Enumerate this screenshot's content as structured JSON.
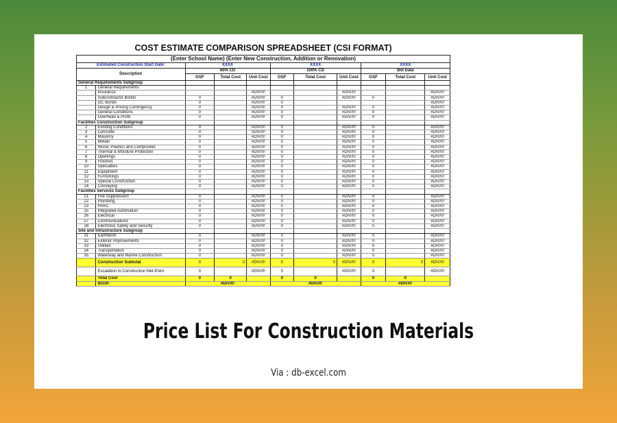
{
  "sheet": {
    "title": "COST ESTIMATE COMPARISON SPREADSHEET (CSI FORMAT)",
    "subtitle": "(Enter School Name) (Enter New Construction, Addition or Renovation)",
    "start_date_label": "Estimated Construction Start Date:",
    "placeholders": [
      "XXXX",
      "XXXX",
      "XXXX"
    ],
    "phases": [
      "60% CD",
      "100% CD",
      "Bid Data"
    ],
    "description_header": "Description",
    "col_headers": [
      "GSF",
      "Total Cost",
      "Unit Cost"
    ],
    "rows": [
      {
        "type": "group",
        "desc": "General Requirements Subgroup"
      },
      {
        "num": "1",
        "desc": "General Requirements",
        "v": [
          "",
          "",
          "",
          "",
          "",
          "",
          "",
          "",
          ""
        ]
      },
      {
        "num": "",
        "desc": "Insurance",
        "v": [
          "",
          "",
          "#DIV/0!",
          "",
          "",
          "#DIV/0!",
          "",
          "",
          "#DIV/0!"
        ]
      },
      {
        "num": "",
        "desc": "Subcontractor Bonds",
        "v": [
          "0",
          "",
          "#DIV/0!",
          "0",
          "",
          "#DIV/0!",
          "0",
          "",
          "#DIV/0!"
        ]
      },
      {
        "num": "",
        "desc": "GC Bonds",
        "v": [
          "0",
          "",
          "#DIV/0!",
          "0",
          "",
          "",
          "",
          "",
          "#DIV/0!"
        ]
      },
      {
        "num": "",
        "desc": "Design & Pricing Contingency",
        "v": [
          "0",
          "",
          "#DIV/0!",
          "0",
          "",
          "#DIV/0!",
          "0",
          "",
          "#DIV/0!"
        ]
      },
      {
        "num": "",
        "desc": "General Conditions",
        "v": [
          "0",
          "",
          "#DIV/0!",
          "0",
          "",
          "#DIV/0!",
          "0",
          "",
          "#DIV/0!"
        ]
      },
      {
        "num": "",
        "desc": "Overhead & Profit",
        "v": [
          "0",
          "",
          "#DIV/0!",
          "0",
          "",
          "#DIV/0!",
          "0",
          "",
          "#DIV/0!"
        ]
      },
      {
        "type": "group",
        "desc": "Facilities Construction Subgroup"
      },
      {
        "num": "2",
        "desc": "Existing Conditions",
        "v": [
          "0",
          "",
          "#DIV/0!",
          "0",
          "",
          "#DIV/0!",
          "0",
          "",
          "#DIV/0!"
        ]
      },
      {
        "num": "3",
        "desc": "Concrete",
        "v": [
          "0",
          "",
          "#DIV/0!",
          "0",
          "",
          "#DIV/0!",
          "0",
          "",
          "#DIV/0!"
        ]
      },
      {
        "num": "4",
        "desc": "Masonry",
        "v": [
          "0",
          "",
          "#DIV/0!",
          "0",
          "",
          "#DIV/0!",
          "0",
          "",
          "#DIV/0!"
        ]
      },
      {
        "num": "5",
        "desc": "Metals",
        "v": [
          "0",
          "",
          "#DIV/0!",
          "0",
          "",
          "#DIV/0!",
          "0",
          "",
          "#DIV/0!"
        ]
      },
      {
        "num": "6",
        "desc": "Wood, Plastics and Composites",
        "v": [
          "0",
          "",
          "#DIV/0!",
          "0",
          "",
          "#DIV/0!",
          "0",
          "",
          "#DIV/0!"
        ]
      },
      {
        "num": "7",
        "desc": "Thermal & Moisture Protection",
        "v": [
          "0",
          "",
          "#DIV/0!",
          "0",
          "",
          "#DIV/0!",
          "0",
          "",
          "#DIV/0!"
        ]
      },
      {
        "num": "8",
        "desc": "Openings",
        "v": [
          "0",
          "",
          "#DIV/0!",
          "0",
          "",
          "#DIV/0!",
          "0",
          "",
          "#DIV/0!"
        ]
      },
      {
        "num": "9",
        "desc": "Finishes",
        "v": [
          "0",
          "",
          "#DIV/0!",
          "0",
          "",
          "#DIV/0!",
          "0",
          "",
          "#DIV/0!"
        ]
      },
      {
        "num": "10",
        "desc": "Specialties",
        "v": [
          "0",
          "",
          "#DIV/0!",
          "0",
          "",
          "#DIV/0!",
          "0",
          "",
          "#DIV/0!"
        ]
      },
      {
        "num": "11",
        "desc": "Equipment",
        "v": [
          "0",
          "",
          "#DIV/0!",
          "0",
          "",
          "#DIV/0!",
          "0",
          "",
          "#DIV/0!"
        ]
      },
      {
        "num": "12",
        "desc": "Furnishings",
        "v": [
          "0",
          "",
          "#DIV/0!",
          "0",
          "",
          "#DIV/0!",
          "0",
          "",
          "#DIV/0!"
        ]
      },
      {
        "num": "13",
        "desc": "Special Construction",
        "v": [
          "0",
          "",
          "#DIV/0!",
          "0",
          "",
          "#DIV/0!",
          "0",
          "",
          "#DIV/0!"
        ]
      },
      {
        "num": "14",
        "desc": "Conveying",
        "v": [
          "0",
          "",
          "#DIV/0!",
          "0",
          "",
          "#DIV/0!",
          "0",
          "",
          "#DIV/0!"
        ]
      },
      {
        "type": "group",
        "desc": "Facilities Services Subgroup"
      },
      {
        "num": "21",
        "desc": "Fire Suppression",
        "v": [
          "0",
          "",
          "#DIV/0!",
          "0",
          "",
          "#DIV/0!",
          "0",
          "",
          "#DIV/0!"
        ]
      },
      {
        "num": "22",
        "desc": "Plumbing",
        "v": [
          "0",
          "",
          "#DIV/0!",
          "0",
          "",
          "#DIV/0!",
          "0",
          "",
          "#DIV/0!"
        ]
      },
      {
        "num": "23",
        "desc": "HVAC",
        "v": [
          "0",
          "",
          "#DIV/0!",
          "0",
          "",
          "#DIV/0!",
          "0",
          "",
          "#DIV/0!"
        ]
      },
      {
        "num": "25",
        "desc": "Integrated Automation",
        "v": [
          "0",
          "",
          "#DIV/0!",
          "0",
          "",
          "#DIV/0!",
          "0",
          "",
          "#DIV/0!"
        ]
      },
      {
        "num": "26",
        "desc": "Electrical",
        "v": [
          "0",
          "",
          "#DIV/0!",
          "0",
          "",
          "#DIV/0!",
          "0",
          "",
          "#DIV/0!"
        ]
      },
      {
        "num": "27",
        "desc": "Communications",
        "v": [
          "0",
          "",
          "#DIV/0!",
          "0",
          "",
          "#DIV/0!",
          "0",
          "",
          "#DIV/0!"
        ]
      },
      {
        "num": "28",
        "desc": "Electronic Safety and Security",
        "v": [
          "0",
          "",
          "#DIV/0!",
          "0",
          "",
          "#DIV/0!",
          "0",
          "",
          "#DIV/0!"
        ]
      },
      {
        "type": "group",
        "desc": "Site and Infrastructure Subgroup"
      },
      {
        "num": "31",
        "desc": "Earthwork",
        "v": [
          "0",
          "",
          "#DIV/0!",
          "0",
          "",
          "#DIV/0!",
          "0",
          "",
          "#DIV/0!"
        ]
      },
      {
        "num": "32",
        "desc": "Exterior Improvements",
        "v": [
          "0",
          "",
          "#DIV/0!",
          "0",
          "",
          "#DIV/0!",
          "0",
          "",
          "#DIV/0!"
        ]
      },
      {
        "num": "33",
        "desc": "Utilities",
        "v": [
          "0",
          "",
          "#DIV/0!",
          "0",
          "",
          "#DIV/0!",
          "0",
          "",
          "#DIV/0!"
        ]
      },
      {
        "num": "34",
        "desc": "Transportation",
        "v": [
          "0",
          "",
          "#DIV/0!",
          "0",
          "",
          "#DIV/0!",
          "0",
          "",
          "#DIV/0!"
        ]
      },
      {
        "num": "35",
        "desc": "Waterway and Marine Construction",
        "v": [
          "0",
          "",
          "#DIV/0!",
          "0",
          "",
          "#DIV/0!",
          "0",
          "",
          "#DIV/0!"
        ]
      },
      {
        "type": "highlight",
        "desc": "Construction Subtotal",
        "v": [
          "0",
          "0",
          "#DIV/0!",
          "0",
          "0",
          "#DIV/0!",
          "0",
          "0",
          "#DIV/0!"
        ]
      },
      {
        "type": "plain",
        "desc": "Escalation to Construction Mid-Point",
        "v": [
          "0",
          "",
          "#DIV/0!",
          "0",
          "",
          "#DIV/0!",
          "0",
          "",
          "#DIV/0!"
        ]
      }
    ],
    "total_cost_label": "Total Cost",
    "total_cost_values": [
      "0",
      "0",
      "0",
      "0",
      "0",
      "0"
    ],
    "sgsf_label": "$/GSF",
    "sgsf_values": [
      "#DIV/0!",
      "#DIV/0!",
      "#DIV/0!"
    ]
  },
  "caption": "Price List For Construction Materials",
  "via": "Via : db-excel.com",
  "colors": {
    "background_top": "#4a8a3c",
    "background_bottom": "#f2a53a",
    "highlight": "#ffff33",
    "label_blue": "#1a2fb0"
  }
}
